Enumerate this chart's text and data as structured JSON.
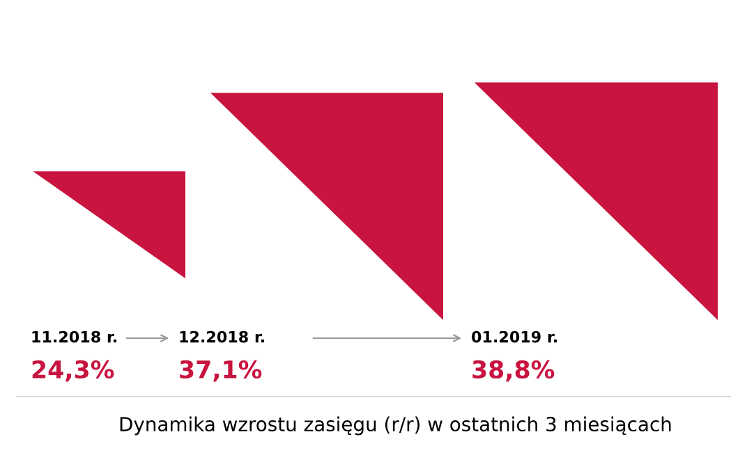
{
  "chart_data": {
    "type": "other",
    "title": "Dynamika wzrostu zasięgu (r/r) w ostatnich 3 miesiącach",
    "categories": [
      "11.2018 r.",
      "12.2018 r.",
      "01.2019 r."
    ],
    "values": [
      24.3,
      37.1,
      38.8
    ],
    "value_labels": [
      "24,3%",
      "37,1%",
      "38,8%"
    ],
    "color": "#c8143f"
  }
}
